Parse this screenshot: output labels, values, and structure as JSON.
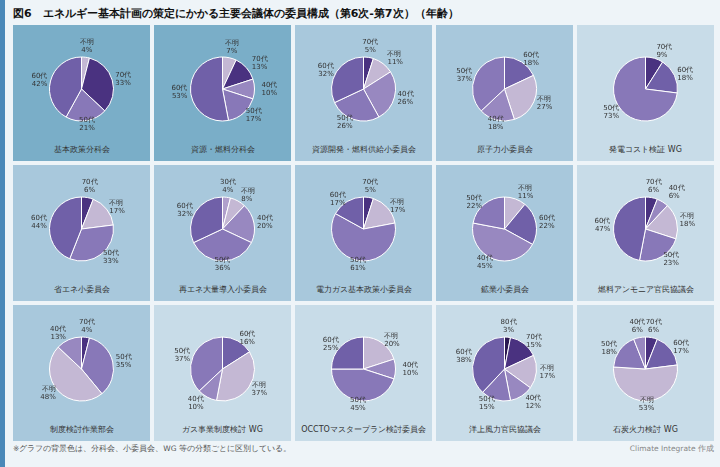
{
  "title": "図6　エネルギー基本計画の策定にかかる主要会議体の委員構成（第6次-第7次）（年齢）",
  "annotations": [
    "※グラフの背景色は、分科会、小委員会、WG 等の分類ごとに区別している。",
    "Climate Integrate 作成"
  ],
  "chart_data": [
    {
      "type": "pie",
      "title": "基本政策分科会",
      "color": "#7aaec8",
      "data_labels": true,
      "categories": [
        "不明",
        "70代",
        "50代",
        "60代"
      ],
      "values": [
        4,
        33,
        21,
        42
      ],
      "value_labels": [
        "4%",
        "33%",
        "21%",
        "42%"
      ],
      "colors": [
        "#c4b8d4",
        "#4a3280",
        "#8878b8",
        "#7060a8"
      ]
    },
    {
      "type": "pie",
      "title": "資源・燃料分科会",
      "color": "#7aaec8",
      "data_labels": true,
      "categories": [
        "不明",
        "70代",
        "40代",
        "50代",
        "60代"
      ],
      "values": [
        7,
        13,
        10,
        17,
        53
      ],
      "value_labels": [
        "7%",
        "13%",
        "10%",
        "17%",
        "53%"
      ],
      "colors": [
        "#c4b8d4",
        "#4a3280",
        "#9888c0",
        "#8878b8",
        "#7060a8"
      ]
    },
    {
      "type": "pie",
      "title": "資源開発・燃料供給小委員会",
      "color": "#a8c8dc",
      "data_labels": true,
      "categories": [
        "70代",
        "不明",
        "40代",
        "50代",
        "60代"
      ],
      "values": [
        5,
        11,
        26,
        26,
        32
      ],
      "value_labels": [
        "5%",
        "11%",
        "26%",
        "26%",
        "32%"
      ],
      "colors": [
        "#4a3280",
        "#c4b8d4",
        "#9888c0",
        "#8878b8",
        "#7060a8"
      ]
    },
    {
      "type": "pie",
      "title": "原子力小委員会",
      "color": "#a8c8dc",
      "data_labels": true,
      "categories": [
        "60代",
        "不明",
        "40代",
        "50代"
      ],
      "values": [
        18,
        27,
        18,
        37
      ],
      "value_labels": [
        "18%",
        "27%",
        "18%",
        "37%"
      ],
      "colors": [
        "#7060a8",
        "#c4b8d4",
        "#9888c0",
        "#8878b8"
      ]
    },
    {
      "type": "pie",
      "title": "発電コスト検証 WG",
      "color": "#c8dce8",
      "data_labels": true,
      "categories": [
        "70代",
        "60代",
        "50代"
      ],
      "values": [
        9,
        18,
        73
      ],
      "value_labels": [
        "9%",
        "18%",
        "73%"
      ],
      "colors": [
        "#4a3280",
        "#7060a8",
        "#8878b8"
      ]
    },
    {
      "type": "pie",
      "title": "省エネ小委員会",
      "color": "#a8c8dc",
      "data_labels": true,
      "categories": [
        "70代",
        "不明",
        "50代",
        "60代"
      ],
      "values": [
        6,
        17,
        33,
        44
      ],
      "value_labels": [
        "6%",
        "17%",
        "33%",
        "44%"
      ],
      "colors": [
        "#4a3280",
        "#c4b8d4",
        "#8878b8",
        "#7060a8"
      ]
    },
    {
      "type": "pie",
      "title": "再エネ大量導入小委員会",
      "color": "#a8c8dc",
      "data_labels": true,
      "categories": [
        "30代",
        "不明",
        "40代",
        "50代",
        "60代"
      ],
      "values": [
        4,
        8,
        20,
        36,
        32
      ],
      "value_labels": [
        "4%",
        "8%",
        "20%",
        "36%",
        "32%"
      ],
      "colors": [
        "#b0a0cc",
        "#c4b8d4",
        "#9888c0",
        "#8878b8",
        "#7060a8"
      ]
    },
    {
      "type": "pie",
      "title": "電力ガス基本政策小委員会",
      "color": "#a8c8dc",
      "data_labels": true,
      "categories": [
        "70代",
        "不明",
        "50代",
        "60代"
      ],
      "values": [
        5,
        17,
        61,
        17
      ],
      "value_labels": [
        "5%",
        "17%",
        "61%",
        "17%"
      ],
      "colors": [
        "#4a3280",
        "#c4b8d4",
        "#8878b8",
        "#7060a8"
      ]
    },
    {
      "type": "pie",
      "title": "鉱業小委員会",
      "color": "#a8c8dc",
      "data_labels": true,
      "categories": [
        "不明",
        "60代",
        "40代",
        "50代"
      ],
      "values": [
        11,
        22,
        45,
        22
      ],
      "value_labels": [
        "11%",
        "22%",
        "45%",
        "22%"
      ],
      "colors": [
        "#c4b8d4",
        "#7060a8",
        "#9888c0",
        "#8878b8"
      ]
    },
    {
      "type": "pie",
      "title": "燃料アンモニア官民協議会",
      "color": "#c8dce8",
      "data_labels": true,
      "categories": [
        "70代",
        "40代",
        "不明",
        "50代",
        "60代"
      ],
      "values": [
        6,
        6,
        18,
        23,
        47
      ],
      "value_labels": [
        "6%",
        "6%",
        "18%",
        "23%",
        "47%"
      ],
      "colors": [
        "#4a3280",
        "#9888c0",
        "#c4b8d4",
        "#8878b8",
        "#7060a8"
      ]
    },
    {
      "type": "pie",
      "title": "制度検討作業部会",
      "color": "#a8c8dc",
      "data_labels": true,
      "categories": [
        "70代",
        "50代",
        "不明",
        "40代"
      ],
      "values": [
        4,
        35,
        48,
        13
      ],
      "value_labels": [
        "4%",
        "35%",
        "48%",
        "13%"
      ],
      "colors": [
        "#4a3280",
        "#8878b8",
        "#c4b8d4",
        "#9888c0"
      ]
    },
    {
      "type": "pie",
      "title": "ガス事業制度検討 WG",
      "color": "#c8dce8",
      "data_labels": true,
      "categories": [
        "60代",
        "不明",
        "40代",
        "50代"
      ],
      "values": [
        16,
        37,
        10,
        37
      ],
      "value_labels": [
        "16%",
        "37%",
        "10%",
        "37%"
      ],
      "colors": [
        "#7060a8",
        "#c4b8d4",
        "#9888c0",
        "#8878b8"
      ]
    },
    {
      "type": "pie",
      "title": "OCCTOマスタープラン検討委員会",
      "color": "#c8dce8",
      "data_labels": true,
      "categories": [
        "不明",
        "40代",
        "50代",
        "60代"
      ],
      "values": [
        20,
        10,
        45,
        25
      ],
      "value_labels": [
        "20%",
        "10%",
        "45%",
        "25%"
      ],
      "colors": [
        "#c4b8d4",
        "#9888c0",
        "#8878b8",
        "#7060a8"
      ]
    },
    {
      "type": "pie",
      "title": "洋上風力官民協議会",
      "color": "#c8dce8",
      "data_labels": true,
      "categories": [
        "80代",
        "70代",
        "不明",
        "40代",
        "50代",
        "60代"
      ],
      "values": [
        3,
        15,
        17,
        12,
        15,
        38
      ],
      "value_labels": [
        "3%",
        "15%",
        "17%",
        "12%",
        "15%",
        "38%"
      ],
      "colors": [
        "#2a1850",
        "#4a3280",
        "#c4b8d4",
        "#9888c0",
        "#8878b8",
        "#7060a8"
      ]
    },
    {
      "type": "pie",
      "title": "石炭火力検討 WG",
      "color": "#c8dce8",
      "data_labels": true,
      "categories": [
        "70代",
        "60代",
        "不明",
        "50代",
        "40代"
      ],
      "values": [
        6,
        17,
        53,
        18,
        6
      ],
      "value_labels": [
        "6%",
        "17%",
        "53%",
        "18%",
        "6%"
      ],
      "colors": [
        "#4a3280",
        "#7060a8",
        "#c4b8d4",
        "#8878b8",
        "#9888c0"
      ]
    }
  ]
}
